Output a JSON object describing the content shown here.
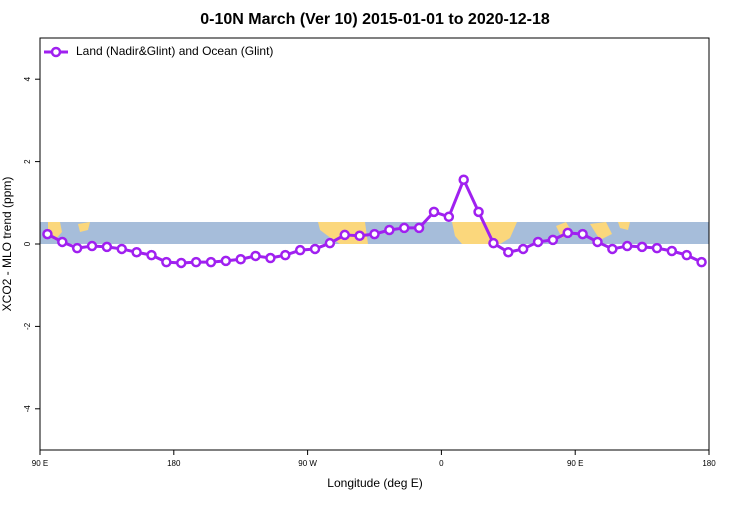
{
  "chart_data": {
    "type": "line",
    "title": "0-10N March (Ver 10)   2015-01-01 to 2020-12-18",
    "x_label": "Longitude (deg E)",
    "y_label": "XCO2 - MLO trend (ppm)",
    "x": [
      95,
      105,
      115,
      125,
      135,
      145,
      155,
      165,
      175,
      185,
      195,
      205,
      215,
      225,
      235,
      245,
      255,
      265,
      275,
      285,
      295,
      305,
      315,
      325,
      335,
      345,
      355,
      365,
      375,
      385,
      395,
      405,
      415,
      425,
      435,
      445,
      455,
      465,
      475,
      485,
      495,
      505,
      515,
      525,
      535
    ],
    "series": [
      {
        "name": "Land (Nadir&Glint) and Ocean (Glint)",
        "color": "#a020f0",
        "values": [
          0.24,
          0.05,
          -0.1,
          -0.05,
          -0.07,
          -0.12,
          -0.2,
          -0.27,
          -0.44,
          -0.46,
          -0.44,
          -0.44,
          -0.41,
          -0.37,
          -0.29,
          -0.34,
          -0.27,
          -0.15,
          -0.12,
          0.02,
          0.22,
          0.2,
          0.24,
          0.34,
          0.39,
          0.39,
          0.78,
          0.66,
          1.56,
          0.78,
          0.02,
          -0.2,
          -0.12,
          0.05,
          0.1,
          0.27,
          0.24,
          0.05,
          -0.12,
          -0.05,
          -0.07,
          -0.1,
          -0.17,
          -0.27,
          -0.44
        ]
      }
    ],
    "xlim": [
      90,
      540
    ],
    "xticks": [
      {
        "value": 90,
        "label": "90 E"
      },
      {
        "value": 180,
        "label": "180"
      },
      {
        "value": 270,
        "label": "90 W"
      },
      {
        "value": 360,
        "label": "0"
      },
      {
        "value": 450,
        "label": "90 E"
      },
      {
        "value": 540,
        "label": "180"
      }
    ],
    "ylim": [
      -5,
      5
    ],
    "yticks": [
      -4,
      -2,
      0,
      2,
      4
    ],
    "grid": false,
    "legend_position": "top-left"
  }
}
